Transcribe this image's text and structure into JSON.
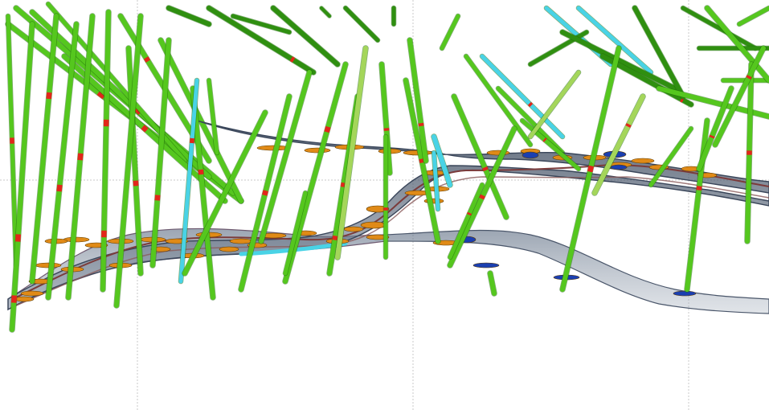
{
  "colors": {
    "background": "#ffffff",
    "gridline": "#c9c9c9",
    "drillhole_green": "#55c71e",
    "drillhole_dark_green": "#2f8f10",
    "drillhole_pale_green": "#a4d65a",
    "drillhole_cyan": "#49d3e6",
    "assay_red": "#e2261b",
    "intercept_orange": "#e08a17",
    "intercept_blue": "#1b3fb0",
    "surface_upper": "#3c4e66",
    "surface_lower": "#6e7e92",
    "surface_mauve": "#8a6f80"
  },
  "scene": {
    "kind": "3d-viewport",
    "elements": [
      "drillholes",
      "ore-surfaces",
      "intercept-discs",
      "grid"
    ],
    "grid": true
  }
}
